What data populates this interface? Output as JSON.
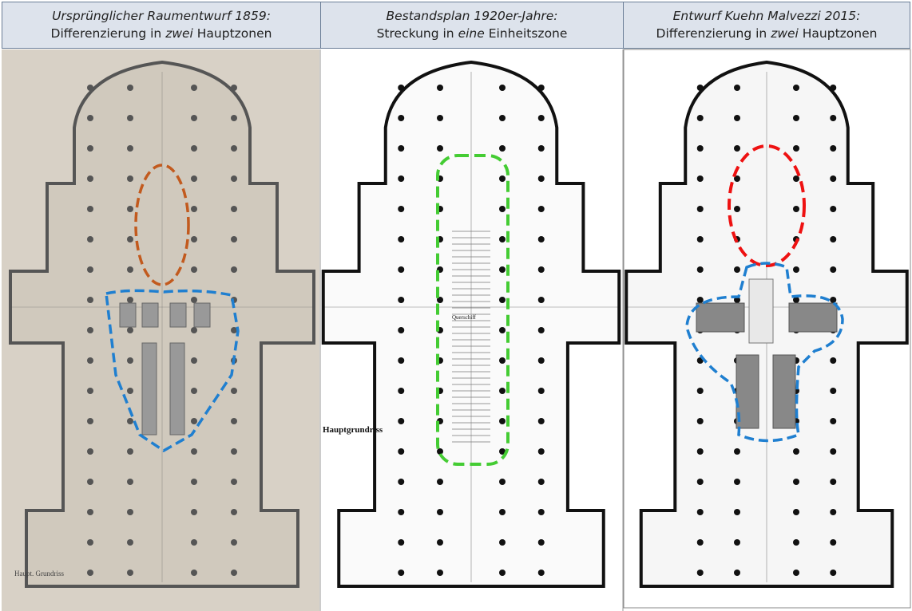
{
  "panels": [
    {
      "title": "Ursprünglicher Raumentwurf 1859:",
      "sub_pre": "Differenzierung in ",
      "sub_em": "zwei",
      "sub_post": " Hauptzonen",
      "plan_label": "Haupt. Grundriss",
      "background": "#d8d1c6",
      "zone_colors": [
        "#c25a1e",
        "#1f7fd0"
      ]
    },
    {
      "title": "Bestandsplan 1920er-Jahre:",
      "sub_pre": "Streckung in ",
      "sub_em": "eine",
      "sub_post": " Einheitszone",
      "plan_label": "Hauptgrundriss",
      "plan_label2": "Querschiff",
      "background": "#ffffff",
      "zone_colors": [
        "#44cc33"
      ]
    },
    {
      "title": "Entwurf Kuehn Malvezzi 2015:",
      "sub_pre": "Differenzierung in ",
      "sub_em": "zwei",
      "sub_post": " Hauptzonen",
      "background": "#ffffff",
      "zone_colors": [
        "#ee1111",
        "#1f7fd0"
      ]
    }
  ]
}
